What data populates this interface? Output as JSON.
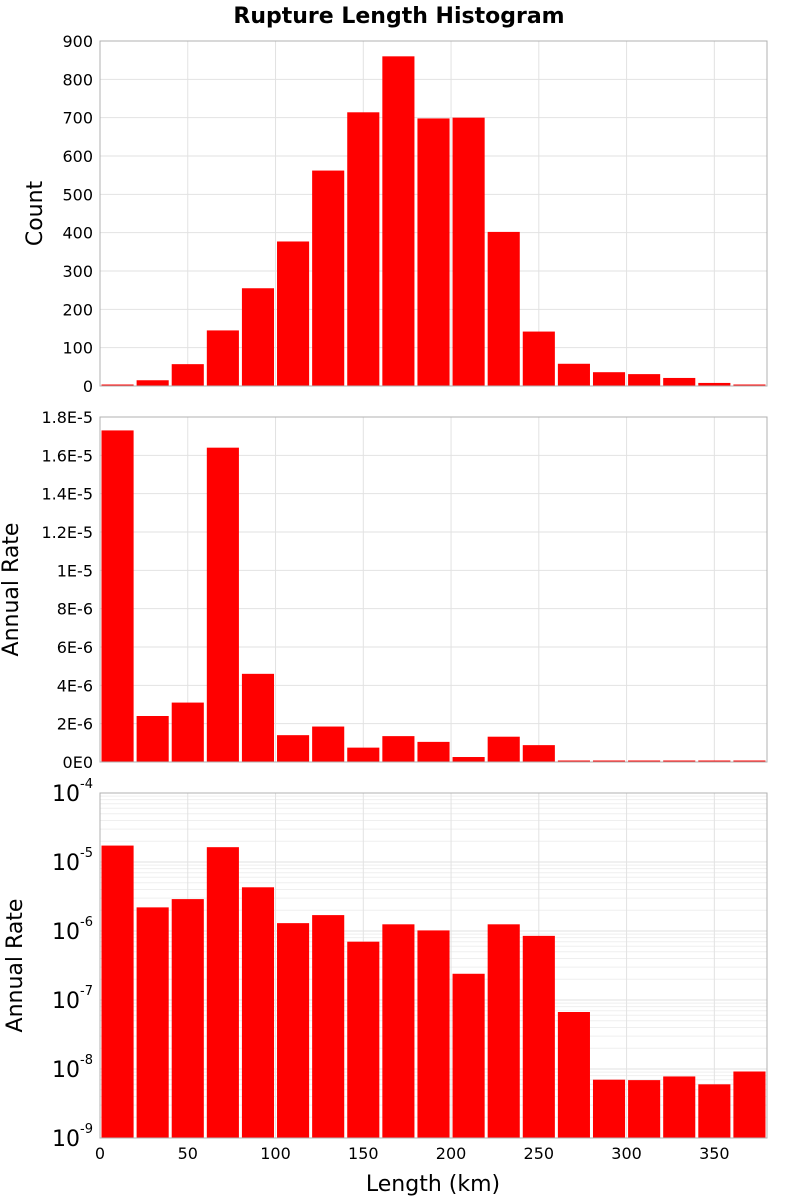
{
  "chart_data": {
    "type": "bar",
    "title": "Rupture Length Histogram",
    "xlabel": "Length (km)",
    "xlim": [
      0,
      380
    ],
    "bin_width": 20,
    "x_ticks": [
      0,
      50,
      100,
      150,
      200,
      250,
      300,
      350
    ],
    "x_tick_labels": [
      "0",
      "50",
      "100",
      "150",
      "200",
      "250",
      "300",
      "350"
    ],
    "bar_color": "#ff0000",
    "grid": true,
    "bin_centers": [
      10,
      30,
      50,
      70,
      90,
      110,
      130,
      150,
      170,
      190,
      210,
      230,
      250,
      270,
      290,
      310,
      330,
      350,
      370
    ],
    "panels": [
      {
        "ylabel": "Count",
        "yscale": "linear",
        "ylim": [
          0,
          900
        ],
        "y_ticks": [
          0,
          100,
          200,
          300,
          400,
          500,
          600,
          700,
          800,
          900
        ],
        "y_tick_labels": [
          "0",
          "100",
          "200",
          "300",
          "400",
          "500",
          "600",
          "700",
          "800",
          "900"
        ],
        "values": [
          2,
          15,
          57,
          145,
          255,
          377,
          562,
          714,
          860,
          698,
          700,
          402,
          142,
          58,
          36,
          31,
          21,
          8,
          3
        ]
      },
      {
        "ylabel": "Annual Rate",
        "yscale": "linear",
        "ylim": [
          0,
          1.8e-05
        ],
        "y_ticks": [
          0,
          2e-06,
          4e-06,
          6e-06,
          8e-06,
          1e-05,
          1.2e-05,
          1.4e-05,
          1.6e-05,
          1.8e-05
        ],
        "y_tick_labels": [
          "0E0",
          "2E-6",
          "4E-6",
          "6E-6",
          "8E-6",
          "1E-5",
          "1.2E-5",
          "1.4E-5",
          "1.6E-5",
          "1.8E-5"
        ],
        "values": [
          1.73e-05,
          2.4e-06,
          3.1e-06,
          1.64e-05,
          4.6e-06,
          1.4e-06,
          1.85e-06,
          7.5e-07,
          1.35e-06,
          1.05e-06,
          2.6e-07,
          1.32e-06,
          8.8e-07,
          7e-08,
          7e-09,
          7e-09,
          8e-09,
          6e-09,
          9e-09
        ]
      },
      {
        "ylabel": "Annual Rate",
        "yscale": "log",
        "ylim": [
          1e-09,
          0.0001
        ],
        "y_ticks": [
          1e-09,
          1e-08,
          1e-07,
          1e-06,
          1e-05,
          0.0001
        ],
        "y_tick_base": "10",
        "y_tick_exponents": [
          "-9",
          "-8",
          "-7",
          "-6",
          "-5",
          "-4"
        ],
        "values": [
          1.73e-05,
          2.2e-06,
          2.9e-06,
          1.64e-05,
          4.3e-06,
          1.3e-06,
          1.7e-06,
          7e-07,
          1.25e-06,
          1.02e-06,
          2.4e-07,
          1.25e-06,
          8.5e-07,
          6.7e-08,
          7e-09,
          6.9e-09,
          7.8e-09,
          6e-09,
          9.2e-09
        ]
      }
    ]
  }
}
